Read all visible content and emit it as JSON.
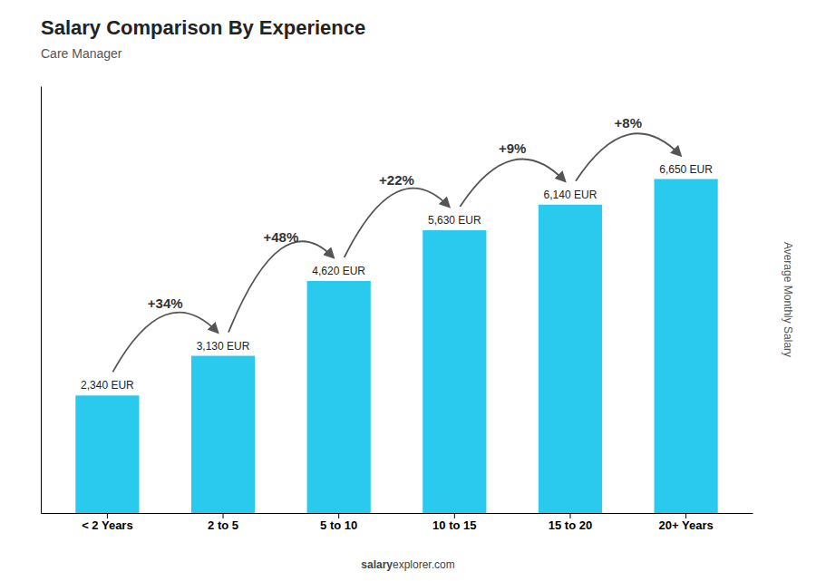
{
  "chart_data": {
    "type": "bar",
    "title": "Salary Comparison By Experience",
    "subtitle": "Care Manager",
    "ylabel": "Average Monthly Salary",
    "categories": [
      "< 2 Years",
      "2 to 5",
      "5 to 10",
      "10 to 15",
      "15 to 20",
      "20+ Years"
    ],
    "values": [
      2340,
      3130,
      4620,
      5630,
      6140,
      6650
    ],
    "value_labels": [
      "2,340 EUR",
      "3,130 EUR",
      "4,620 EUR",
      "5,630 EUR",
      "6,140 EUR",
      "6,650 EUR"
    ],
    "data_labels": true,
    "annotations": [
      "+34%",
      "+48%",
      "+22%",
      "+9%",
      "+8%"
    ],
    "footer": [
      "salary",
      "explorer.com"
    ],
    "color": "#29CAED",
    "ylim": [
      0,
      8500
    ],
    "tick_labels": "x",
    "grid": false
  }
}
